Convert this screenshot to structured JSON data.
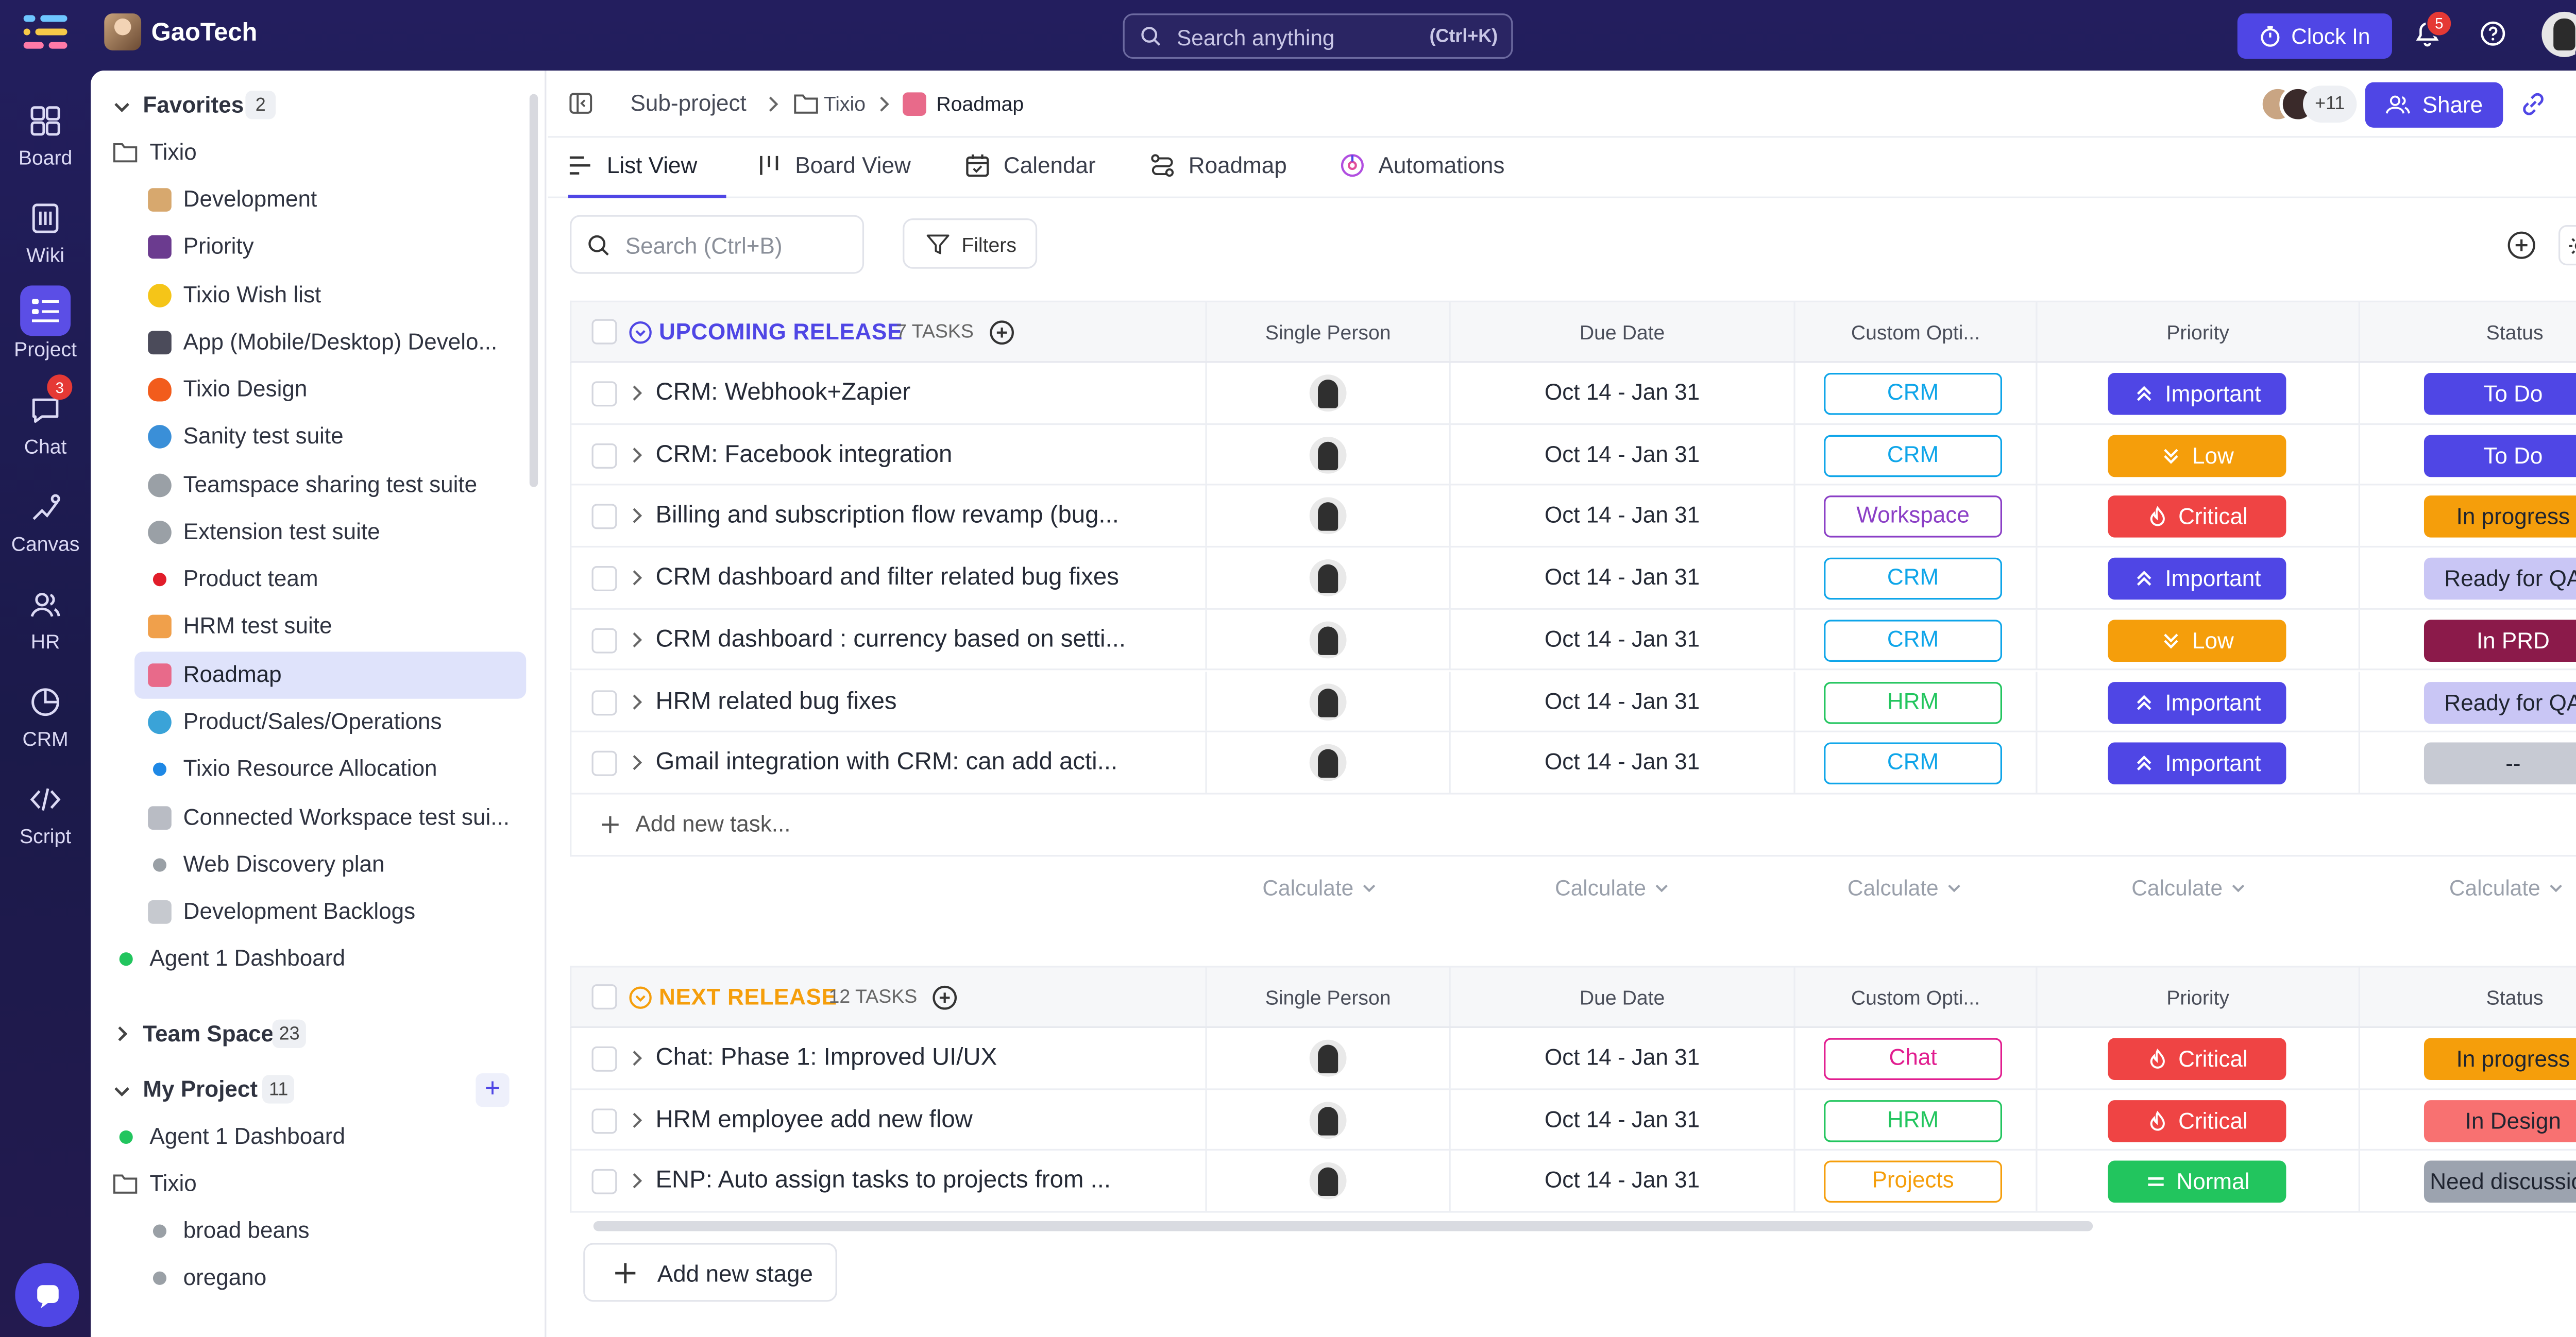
{
  "topbar": {
    "workspace": "GaoTech",
    "search_placeholder": "Search anything",
    "search_shortcut": "(Ctrl+K)",
    "clock_in": "Clock In",
    "notifications": "5"
  },
  "rail": {
    "items": [
      {
        "label": "Board",
        "icon": "board-icon"
      },
      {
        "label": "Wiki",
        "icon": "wiki-icon"
      },
      {
        "label": "Project",
        "icon": "project-icon"
      },
      {
        "label": "Chat",
        "icon": "chat-icon"
      },
      {
        "label": "Canvas",
        "icon": "canvas-icon"
      },
      {
        "label": "HR",
        "icon": "hr-icon"
      },
      {
        "label": "CRM",
        "icon": "crm-icon"
      },
      {
        "label": "Script",
        "icon": "script-icon"
      }
    ],
    "chat_badge": "3"
  },
  "sidebar": {
    "favorites": "Favorites",
    "favorites_count": "2",
    "folder": "Tixio",
    "items": [
      "Development",
      "Priority",
      "Tixio Wish list",
      "App (Mobile/Desktop) Develo...",
      "Tixio Design",
      "Sanity test suite",
      "Teamspace sharing test suite",
      "Extension test suite",
      "Product team",
      "HRM test suite",
      "Roadmap",
      "Product/Sales/Operations",
      "Tixio Resource Allocation",
      "Connected Workspace test sui...",
      "Web Discovery plan",
      "Development Backlogs"
    ],
    "agent": "Agent 1 Dashboard",
    "team_space": "Team Space",
    "team_space_count": "23",
    "my_project": "My Project",
    "my_project_count": "11",
    "my_agent": "Agent 1 Dashboard",
    "my_folder": "Tixio",
    "my_items": [
      "broad beans",
      "oregano"
    ]
  },
  "breadcrumb": {
    "a": "Sub-project",
    "b": "Tixio",
    "c": "Roadmap"
  },
  "header": {
    "avatars_more": "+11",
    "share": "Share"
  },
  "tabs": [
    "List View",
    "Board View",
    "Calendar",
    "Roadmap",
    "Automations"
  ],
  "toolbar": {
    "search_placeholder": "Search (Ctrl+B)",
    "filters": "Filters"
  },
  "columns": [
    "Single Person",
    "Due Date",
    "Custom Opti...",
    "Priority",
    "Status"
  ],
  "groups": [
    {
      "title": "UPCOMING RELEASE",
      "count": "7 TASKS",
      "color": "#4f46e5",
      "rows": [
        {
          "task": "CRM: Webhook+Zapier",
          "due": "Oct 14 - Jan 31",
          "opt": "CRM",
          "prio": "Important",
          "status": "To Do"
        },
        {
          "task": "CRM: Facebook integration",
          "due": "Oct 14 - Jan 31",
          "opt": "CRM",
          "prio": "Low",
          "status": "To Do"
        },
        {
          "task": "Billing and subscription flow revamp (bug...",
          "due": "Oct 14 - Jan 31",
          "opt": "Workspace",
          "prio": "Critical",
          "status": "In progress"
        },
        {
          "task": "CRM dashboard and filter related bug fixes",
          "due": "Oct 14 - Jan 31",
          "opt": "CRM",
          "prio": "Important",
          "status": "Ready for QA"
        },
        {
          "task": "CRM dashboard : currency based on setti...",
          "due": "Oct 14 - Jan 31",
          "opt": "CRM",
          "prio": "Low",
          "status": "In PRD"
        },
        {
          "task": "HRM related bug fixes",
          "due": "Oct 14 - Jan 31",
          "opt": "HRM",
          "prio": "Important",
          "status": "Ready for QA"
        },
        {
          "task": "Gmail integration with CRM: can add acti...",
          "due": "Oct 14 - Jan 31",
          "opt": "CRM",
          "prio": "Important",
          "status": "--"
        }
      ],
      "add_task": "Add new task...",
      "calculate": "Calculate"
    },
    {
      "title": "NEXT RELEASE",
      "count": "12 TASKS",
      "color": "#f59e0b",
      "rows": [
        {
          "task": "Chat: Phase 1: Improved UI/UX",
          "due": "Oct 14 - Jan 31",
          "opt": "Chat",
          "prio": "Critical",
          "status": "In progress"
        },
        {
          "task": "HRM employee add new flow",
          "due": "Oct 14 - Jan 31",
          "opt": "HRM",
          "prio": "Critical",
          "status": "In Design"
        },
        {
          "task": "ENP: Auto assign tasks to projects from ...",
          "due": "Oct 14 - Jan 31",
          "opt": "Projects",
          "prio": "Normal",
          "status": "Need discussion"
        }
      ]
    }
  ],
  "add_stage": "Add new stage",
  "colors": {
    "accent": "#4f46e5",
    "crm": "#0ea5e9",
    "workspace": "#8b3fc6",
    "hrm": "#22c55e",
    "chat": "#e11d8f",
    "projects": "#f59e0b",
    "important": "#4f46e5",
    "low": "#f59e0b",
    "critical": "#ef4444",
    "normal": "#22c55e",
    "todo": "#4f46e5",
    "inprogress": "#f59e0b",
    "readyqa": "#c9c6f5",
    "inprd": "#8b1a4a",
    "indesign": "#f87171",
    "empty": "#c7cad3",
    "needdisc": "#9ca3af"
  }
}
